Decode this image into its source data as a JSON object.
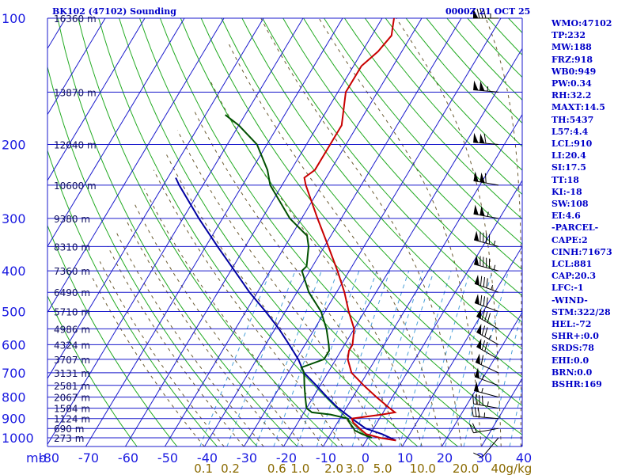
{
  "header": {
    "station_title": "BK102 (47102) Sounding",
    "valid_time": "0000Z 21 OCT 25"
  },
  "stats": [
    "WMO:47102",
    "TP:232",
    "MW:188",
    "FRZ:918",
    "WB0:949",
    "PW:0.34",
    "RH:32.2",
    "MAXT:14.5",
    "TH:5437",
    "L57:4.4",
    "LCL:910",
    "LI:20.4",
    "SI:17.5",
    "TT:18",
    "KI:-18",
    "SW:108",
    "EI:4.6",
    "-PARCEL-",
    "CAPE:2",
    "CINH:71673",
    "LCL:881",
    "CAP:20.3",
    "LFC:-1",
    "-WIND-",
    "STM:322/28",
    "HEL:-72",
    "SHR+:0.0",
    "SRDS:78",
    "EHI:0.0",
    "BRN:0.0",
    "BSHR:169"
  ],
  "colors": {
    "grid": "#1a1acc",
    "dry_adiabat": "#22aa22",
    "moist_adiabat": "#6a5a30",
    "mixing_ratio": "#4aa0d8",
    "temperature": "#c80000",
    "dewpoint": "#005000",
    "parcel": "#0000a0",
    "wind": "#000000"
  },
  "chart_data": {
    "type": "skew-t log-p sounding",
    "pressure_unit": "mb",
    "pressure_ticks": [
      "100",
      "200",
      "300",
      "400",
      "500",
      "600",
      "700",
      "800",
      "900",
      "1000"
    ],
    "pressure_axis_label": "mb",
    "temperature_ticks": [
      "-80",
      "-70",
      "-60",
      "-50",
      "-40",
      "-30",
      "-20",
      "-10",
      "0",
      "10",
      "20",
      "30",
      "40"
    ],
    "mixing_ratio_ticks": [
      "0.1",
      "0.2",
      "0.6",
      "1.0",
      "2.0",
      "3.0",
      "5.0",
      "10.0",
      "20.0",
      "40"
    ],
    "mixing_ratio_unit": "g/kg",
    "height_labels": [
      {
        "p": 100,
        "text": "16360 m"
      },
      {
        "p": 150,
        "text": "13870 m"
      },
      {
        "p": 200,
        "text": "12040 m"
      },
      {
        "p": 250,
        "text": "10600 m"
      },
      {
        "p": 300,
        "text": "9380 m"
      },
      {
        "p": 350,
        "text": "8310 m"
      },
      {
        "p": 400,
        "text": "7360 m"
      },
      {
        "p": 450,
        "text": "6490 m"
      },
      {
        "p": 500,
        "text": "5710 m"
      },
      {
        "p": 550,
        "text": "4986 m"
      },
      {
        "p": 600,
        "text": "4324 m"
      },
      {
        "p": 650,
        "text": "3707 m"
      },
      {
        "p": 700,
        "text": "3131 m"
      },
      {
        "p": 750,
        "text": "2581 m"
      },
      {
        "p": 800,
        "text": "2067 m"
      },
      {
        "p": 850,
        "text": "1584 m"
      },
      {
        "p": 900,
        "text": "1124 m"
      },
      {
        "p": 950,
        "text": "690 m"
      },
      {
        "p": 1000,
        "text": "273 m"
      }
    ],
    "temperature_profile": [
      [
        1015,
        7.5
      ],
      [
        1000,
        3
      ],
      [
        980,
        -1
      ],
      [
        950,
        -3.5
      ],
      [
        920,
        -6
      ],
      [
        900,
        -7
      ],
      [
        880,
        0
      ],
      [
        870,
        3
      ],
      [
        850,
        1
      ],
      [
        800,
        -4
      ],
      [
        750,
        -9
      ],
      [
        700,
        -14
      ],
      [
        650,
        -17
      ],
      [
        620,
        -18
      ],
      [
        600,
        -18
      ],
      [
        550,
        -20
      ],
      [
        500,
        -24
      ],
      [
        450,
        -28
      ],
      [
        400,
        -33
      ],
      [
        350,
        -39
      ],
      [
        300,
        -46
      ],
      [
        250,
        -54
      ],
      [
        240,
        -55.5
      ],
      [
        230,
        -54
      ],
      [
        200,
        -54
      ],
      [
        180,
        -54
      ],
      [
        150,
        -58
      ],
      [
        130,
        -58
      ],
      [
        120,
        -56
      ],
      [
        110,
        -55
      ],
      [
        105,
        -56
      ],
      [
        100,
        -57
      ]
    ],
    "dewpoint_profile": [
      [
        1000,
        1
      ],
      [
        980,
        -2
      ],
      [
        960,
        -4.5
      ],
      [
        950,
        -5
      ],
      [
        920,
        -7
      ],
      [
        900,
        -8
      ],
      [
        880,
        -13
      ],
      [
        870,
        -18
      ],
      [
        850,
        -20
      ],
      [
        800,
        -22
      ],
      [
        750,
        -24
      ],
      [
        700,
        -26
      ],
      [
        680,
        -27.5
      ],
      [
        650,
        -23
      ],
      [
        620,
        -23
      ],
      [
        600,
        -24
      ],
      [
        550,
        -27
      ],
      [
        500,
        -31
      ],
      [
        450,
        -37
      ],
      [
        400,
        -42
      ],
      [
        390,
        -41.5
      ],
      [
        350,
        -44
      ],
      [
        330,
        -46
      ],
      [
        300,
        -53
      ],
      [
        250,
        -63
      ],
      [
        230,
        -66
      ],
      [
        200,
        -72.5
      ],
      [
        180,
        -80
      ],
      [
        170,
        -85
      ]
    ],
    "parcel_profile": [
      [
        1015,
        7.5
      ],
      [
        980,
        3
      ],
      [
        950,
        -2
      ],
      [
        900,
        -7
      ],
      [
        850,
        -12
      ],
      [
        800,
        -16.5
      ],
      [
        750,
        -21
      ],
      [
        700,
        -26
      ],
      [
        650,
        -29.5
      ],
      [
        600,
        -34
      ],
      [
        550,
        -39
      ],
      [
        500,
        -45
      ],
      [
        450,
        -52
      ],
      [
        400,
        -59
      ],
      [
        350,
        -67
      ],
      [
        300,
        -76
      ],
      [
        250,
        -86
      ],
      [
        240,
        -88
      ]
    ],
    "wind_barbs": [
      {
        "p": 1000,
        "dir": 220,
        "spd": 10
      },
      {
        "p": 950,
        "dir": 260,
        "spd": 20
      },
      {
        "p": 900,
        "dir": 275,
        "spd": 35
      },
      {
        "p": 850,
        "dir": 280,
        "spd": 45
      },
      {
        "p": 800,
        "dir": 285,
        "spd": 55
      },
      {
        "p": 750,
        "dir": 290,
        "spd": 55
      },
      {
        "p": 700,
        "dir": 295,
        "spd": 60
      },
      {
        "p": 650,
        "dir": 300,
        "spd": 70
      },
      {
        "p": 600,
        "dir": 300,
        "spd": 75
      },
      {
        "p": 550,
        "dir": 300,
        "spd": 80
      },
      {
        "p": 500,
        "dir": 290,
        "spd": 80
      },
      {
        "p": 450,
        "dir": 290,
        "spd": 85
      },
      {
        "p": 400,
        "dir": 285,
        "spd": 95
      },
      {
        "p": 350,
        "dir": 285,
        "spd": 95
      },
      {
        "p": 300,
        "dir": 280,
        "spd": 105
      },
      {
        "p": 250,
        "dir": 280,
        "spd": 110
      },
      {
        "p": 200,
        "dir": 275,
        "spd": 110
      },
      {
        "p": 150,
        "dir": 275,
        "spd": 105
      },
      {
        "p": 100,
        "dir": 270,
        "spd": 85
      }
    ]
  }
}
